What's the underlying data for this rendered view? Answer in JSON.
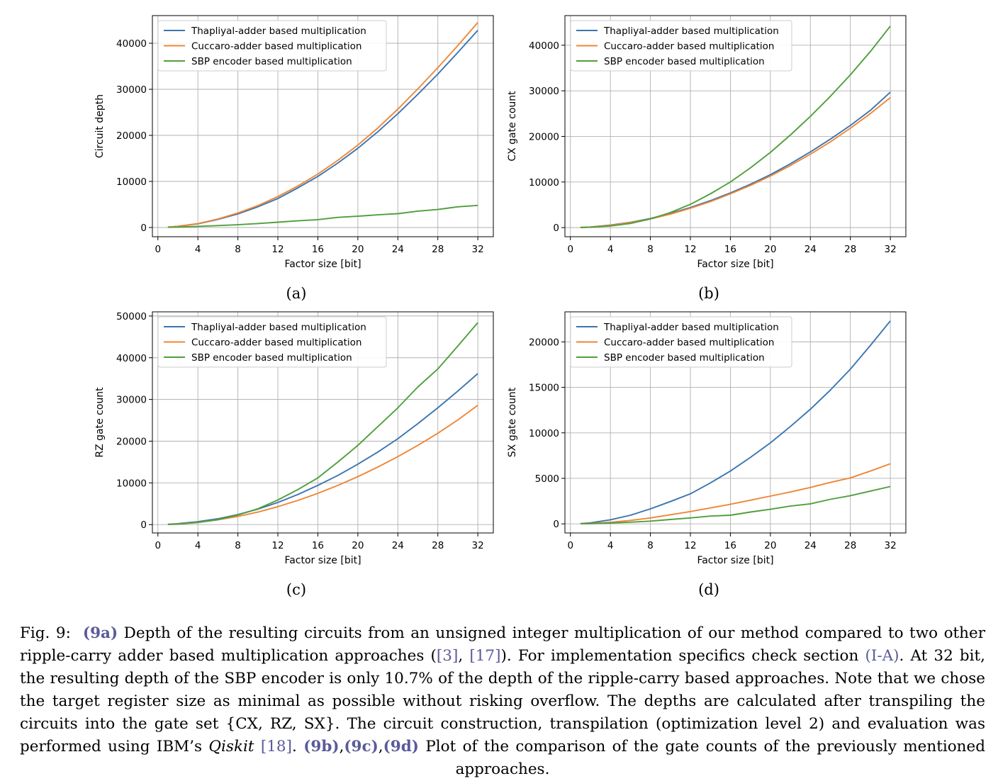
{
  "legend_labels": [
    "Thapliyal-adder based multiplication",
    "Cuccaro-adder based multiplication",
    "SBP encoder based multiplication"
  ],
  "colors": {
    "blue": "#3a75b0",
    "orange": "#ef8636",
    "green": "#4f9f3b"
  },
  "chart_data": [
    {
      "type": "line",
      "id": "a",
      "sublabel": "(a)",
      "xlabel": "Factor size [bit]",
      "ylabel": "Circuit depth",
      "xlim": [
        -0.55,
        33.55
      ],
      "ylim": [
        -2000,
        46000
      ],
      "xticks": [
        0,
        4,
        8,
        12,
        16,
        20,
        24,
        28,
        32
      ],
      "yticks": [
        0,
        10000,
        20000,
        30000,
        40000
      ],
      "grid": true,
      "legend_position": "upper-left",
      "x": [
        1,
        2,
        4,
        6,
        8,
        10,
        12,
        14,
        16,
        18,
        20,
        22,
        24,
        26,
        28,
        30,
        32
      ],
      "series": [
        {
          "name": "Thapliyal-adder based multiplication",
          "color": "blue",
          "values": [
            80,
            240,
            800,
            1750,
            2950,
            4500,
            6300,
            8600,
            11100,
            14000,
            17200,
            20800,
            24700,
            28900,
            33300,
            38000,
            42800
          ]
        },
        {
          "name": "Cuccaro-adder based multiplication",
          "color": "orange",
          "values": [
            90,
            260,
            850,
            1850,
            3150,
            4750,
            6700,
            9000,
            11600,
            14600,
            17900,
            21600,
            25700,
            30100,
            34700,
            39500,
            44500
          ]
        },
        {
          "name": "SBP encoder based multiplication",
          "color": "green",
          "values": [
            50,
            90,
            250,
            420,
            600,
            860,
            1150,
            1450,
            1700,
            2200,
            2450,
            2750,
            3000,
            3550,
            3900,
            4500,
            4800
          ]
        }
      ]
    },
    {
      "type": "line",
      "id": "b",
      "sublabel": "(b)",
      "xlabel": "Factor size [bit]",
      "ylabel": "CX gate count",
      "xlim": [
        -0.55,
        33.55
      ],
      "ylim": [
        -2000,
        46500
      ],
      "xticks": [
        0,
        4,
        8,
        12,
        16,
        20,
        24,
        28,
        32
      ],
      "yticks": [
        0,
        10000,
        20000,
        30000,
        40000
      ],
      "grid": true,
      "legend_position": "upper-left",
      "x": [
        1,
        2,
        4,
        6,
        8,
        10,
        12,
        14,
        16,
        18,
        20,
        22,
        24,
        26,
        28,
        30,
        32
      ],
      "series": [
        {
          "name": "Thapliyal-adder based multiplication",
          "color": "blue",
          "values": [
            40,
            130,
            550,
            1150,
            2000,
            3100,
            4400,
            5900,
            7600,
            9500,
            11600,
            14000,
            16600,
            19400,
            22400,
            25700,
            29700
          ]
        },
        {
          "name": "Cuccaro-adder based multiplication",
          "color": "orange",
          "values": [
            40,
            130,
            500,
            1100,
            1900,
            2950,
            4250,
            5700,
            7400,
            9250,
            11300,
            13600,
            16100,
            18800,
            21800,
            25000,
            28500
          ]
        },
        {
          "name": "SBP encoder based multiplication",
          "color": "green",
          "values": [
            20,
            80,
            360,
            900,
            1900,
            3300,
            5100,
            7400,
            10000,
            13100,
            16500,
            20300,
            24400,
            28800,
            33500,
            38600,
            44200
          ]
        }
      ]
    },
    {
      "type": "line",
      "id": "c",
      "sublabel": "(c)",
      "xlabel": "Factor size [bit]",
      "ylabel": "RZ gate count",
      "xlim": [
        -0.55,
        33.55
      ],
      "ylim": [
        -2000,
        51000
      ],
      "xticks": [
        0,
        4,
        8,
        12,
        16,
        20,
        24,
        28,
        32
      ],
      "yticks": [
        0,
        10000,
        20000,
        30000,
        40000,
        50000
      ],
      "grid": true,
      "legend_position": "upper-left",
      "x": [
        1,
        2,
        4,
        6,
        8,
        10,
        12,
        14,
        16,
        18,
        20,
        22,
        24,
        26,
        28,
        30,
        32
      ],
      "series": [
        {
          "name": "Thapliyal-adder based multiplication",
          "color": "blue",
          "values": [
            80,
            250,
            700,
            1400,
            2400,
            3700,
            5300,
            7200,
            9400,
            11800,
            14500,
            17400,
            20600,
            24200,
            28000,
            32000,
            36200
          ]
        },
        {
          "name": "Cuccaro-adder based multiplication",
          "color": "orange",
          "values": [
            60,
            180,
            560,
            1150,
            1950,
            3000,
            4300,
            5800,
            7500,
            9400,
            11500,
            13800,
            16300,
            19000,
            21900,
            25100,
            28600
          ]
        },
        {
          "name": "SBP encoder based multiplication",
          "color": "green",
          "values": [
            30,
            120,
            500,
            1200,
            2300,
            3800,
            5900,
            8400,
            11200,
            15000,
            19000,
            23500,
            28000,
            33000,
            37300,
            42800,
            48400
          ]
        }
      ]
    },
    {
      "type": "line",
      "id": "d",
      "sublabel": "(d)",
      "xlabel": "Factor size [bit]",
      "ylabel": "SX gate count",
      "xlim": [
        -0.55,
        33.55
      ],
      "ylim": [
        -1000,
        23300
      ],
      "xticks": [
        0,
        4,
        8,
        12,
        16,
        20,
        24,
        28,
        32
      ],
      "yticks": [
        0,
        5000,
        10000,
        15000,
        20000
      ],
      "grid": true,
      "legend_position": "upper-left",
      "x": [
        1,
        2,
        4,
        6,
        8,
        10,
        12,
        14,
        16,
        18,
        20,
        22,
        24,
        26,
        28,
        30,
        32
      ],
      "series": [
        {
          "name": "Thapliyal-adder based multiplication",
          "color": "blue",
          "values": [
            30,
            110,
            450,
            950,
            1650,
            2450,
            3300,
            4500,
            5800,
            7300,
            8900,
            10700,
            12600,
            14700,
            17000,
            19600,
            22300
          ]
        },
        {
          "name": "Cuccaro-adder based multiplication",
          "color": "orange",
          "values": [
            10,
            40,
            170,
            380,
            650,
            1000,
            1350,
            1750,
            2150,
            2600,
            3050,
            3500,
            4000,
            4550,
            5050,
            5800,
            6600
          ]
        },
        {
          "name": "SBP encoder based multiplication",
          "color": "green",
          "values": [
            5,
            20,
            80,
            180,
            300,
            480,
            650,
            850,
            950,
            1300,
            1600,
            1950,
            2200,
            2700,
            3100,
            3600,
            4100
          ]
        }
      ]
    }
  ],
  "caption": {
    "fig_label": "Fig. 9:",
    "ref_9a": "(9a)",
    "text_1": " Depth of the resulting circuits from an unsigned integer multiplication of our method compared to two other ripple-carry adder based multiplication approaches (",
    "ref_3": "[3]",
    "sep_1": ", ",
    "ref_17": "[17]",
    "text_2": "). For implementation specifics check section ",
    "ref_ia": "(I-A)",
    "text_3": ". At 32 bit, the resulting depth of the SBP encoder is only 10.7% of the depth of the ripple-carry based approaches. Note that we chose the target register size as minimal as possible without risking overflow. The depths are calculated after transpiling the circuits into the gate set {CX, RZ, SX}. The circuit construction, transpilation (optimization level 2) and evaluation was performed using IBM’s ",
    "qiskit": "Qiskit",
    "text_4": " ",
    "ref_18": "[18]",
    "text_5": ". ",
    "ref_9b": "(9b)",
    "sep_2": ",",
    "ref_9c": "(9c)",
    "sep_3": ",",
    "ref_9d": "(9d)",
    "text_6": " Plot of the comparison of the gate counts of the previously mentioned approaches."
  }
}
